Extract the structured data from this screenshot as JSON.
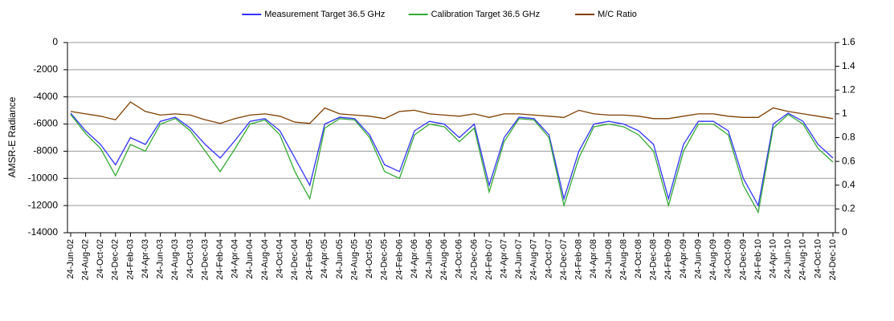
{
  "chart_data": {
    "type": "line",
    "y_label": "AMSR-E Radiance",
    "categories": [
      "24-Jun-02",
      "24-Aug-02",
      "24-Oct-02",
      "24-Dec-02",
      "24-Feb-03",
      "24-Apr-03",
      "24-Jun-03",
      "24-Aug-03",
      "24-Oct-03",
      "24-Dec-03",
      "24-Feb-04",
      "24-Apr-04",
      "24-Jun-04",
      "24-Aug-04",
      "24-Oct-04",
      "24-Dec-04",
      "24-Feb-05",
      "24-Apr-05",
      "24-Jun-05",
      "24-Aug-05",
      "24-Oct-05",
      "24-Dec-05",
      "24-Feb-06",
      "24-Apr-06",
      "24-Jun-06",
      "24-Aug-06",
      "24-Oct-06",
      "24-Dec-06",
      "24-Feb-07",
      "24-Apr-07",
      "24-Jun-07",
      "24-Aug-07",
      "24-Oct-07",
      "24-Dec-07",
      "24-Feb-08",
      "24-Apr-08",
      "24-Jun-08",
      "24-Aug-08",
      "24-Oct-08",
      "24-Dec-08",
      "24-Feb-09",
      "24-Apr-09",
      "24-Jun-09",
      "24-Aug-09",
      "24-Oct-09",
      "24-Dec-09",
      "24-Feb-10",
      "24-Apr-10",
      "24-Jun-10",
      "24-Aug-10",
      "24-Oct-10",
      "24-Dec-10"
    ],
    "series": [
      {
        "name": "Measurement Target 36.5 GHz",
        "color": "#3333ff",
        "axis": "y",
        "values": [
          -5200,
          -6500,
          -7500,
          -9000,
          -7000,
          -7500,
          -5800,
          -5500,
          -6300,
          -7500,
          -8500,
          -7200,
          -5800,
          -5600,
          -6500,
          -8500,
          -10500,
          -6000,
          -5500,
          -5600,
          -6800,
          -9000,
          -9500,
          -6500,
          -5800,
          -6000,
          -7000,
          -6000,
          -10500,
          -7000,
          -5500,
          -5600,
          -6800,
          -11500,
          -8000,
          -6000,
          -5800,
          -6000,
          -6500,
          -7500,
          -11500,
          -7500,
          -5800,
          -5800,
          -6500,
          -10000,
          -12000,
          -6000,
          -5200,
          -5800,
          -7500,
          -8500
        ]
      },
      {
        "name": "Calibration Target 36.5 GHz",
        "color": "#33aa33",
        "axis": "y",
        "values": [
          -5300,
          -6700,
          -7800,
          -9800,
          -7500,
          -8000,
          -6000,
          -5600,
          -6500,
          -8000,
          -9500,
          -7800,
          -6000,
          -5700,
          -6800,
          -9500,
          -11500,
          -6300,
          -5600,
          -5700,
          -7000,
          -9500,
          -10000,
          -6800,
          -6000,
          -6200,
          -7300,
          -6300,
          -11000,
          -7300,
          -5600,
          -5700,
          -7000,
          -12000,
          -8500,
          -6200,
          -6000,
          -6200,
          -6800,
          -8000,
          -12000,
          -8000,
          -6000,
          -6000,
          -6800,
          -10500,
          -12500,
          -6300,
          -5300,
          -6000,
          -7800,
          -8800
        ]
      },
      {
        "name": "M/C Ratio",
        "color": "#7f3f00",
        "axis": "y2",
        "values": [
          1.02,
          1.0,
          0.98,
          0.95,
          1.1,
          1.02,
          0.99,
          1.0,
          0.99,
          0.95,
          0.92,
          0.96,
          0.99,
          1.0,
          0.98,
          0.93,
          0.92,
          1.05,
          1.0,
          0.99,
          0.98,
          0.96,
          1.02,
          1.03,
          1.0,
          0.99,
          0.98,
          1.0,
          0.97,
          1.0,
          1.0,
          0.99,
          0.98,
          0.97,
          1.03,
          1.0,
          0.99,
          0.99,
          0.98,
          0.96,
          0.96,
          0.98,
          1.0,
          1.0,
          0.98,
          0.97,
          0.97,
          1.05,
          1.02,
          1.0,
          0.98,
          0.96
        ]
      }
    ],
    "ylim": [
      -14000,
      0
    ],
    "yticks": [
      0,
      -2000,
      -4000,
      -6000,
      -8000,
      -10000,
      -12000,
      -14000
    ],
    "y2lim": [
      0,
      1.6
    ],
    "y2ticks": [
      0,
      0.2,
      0.4,
      0.6,
      0.8,
      1,
      1.2,
      1.4,
      1.6
    ],
    "grid": true,
    "legend": "top"
  }
}
